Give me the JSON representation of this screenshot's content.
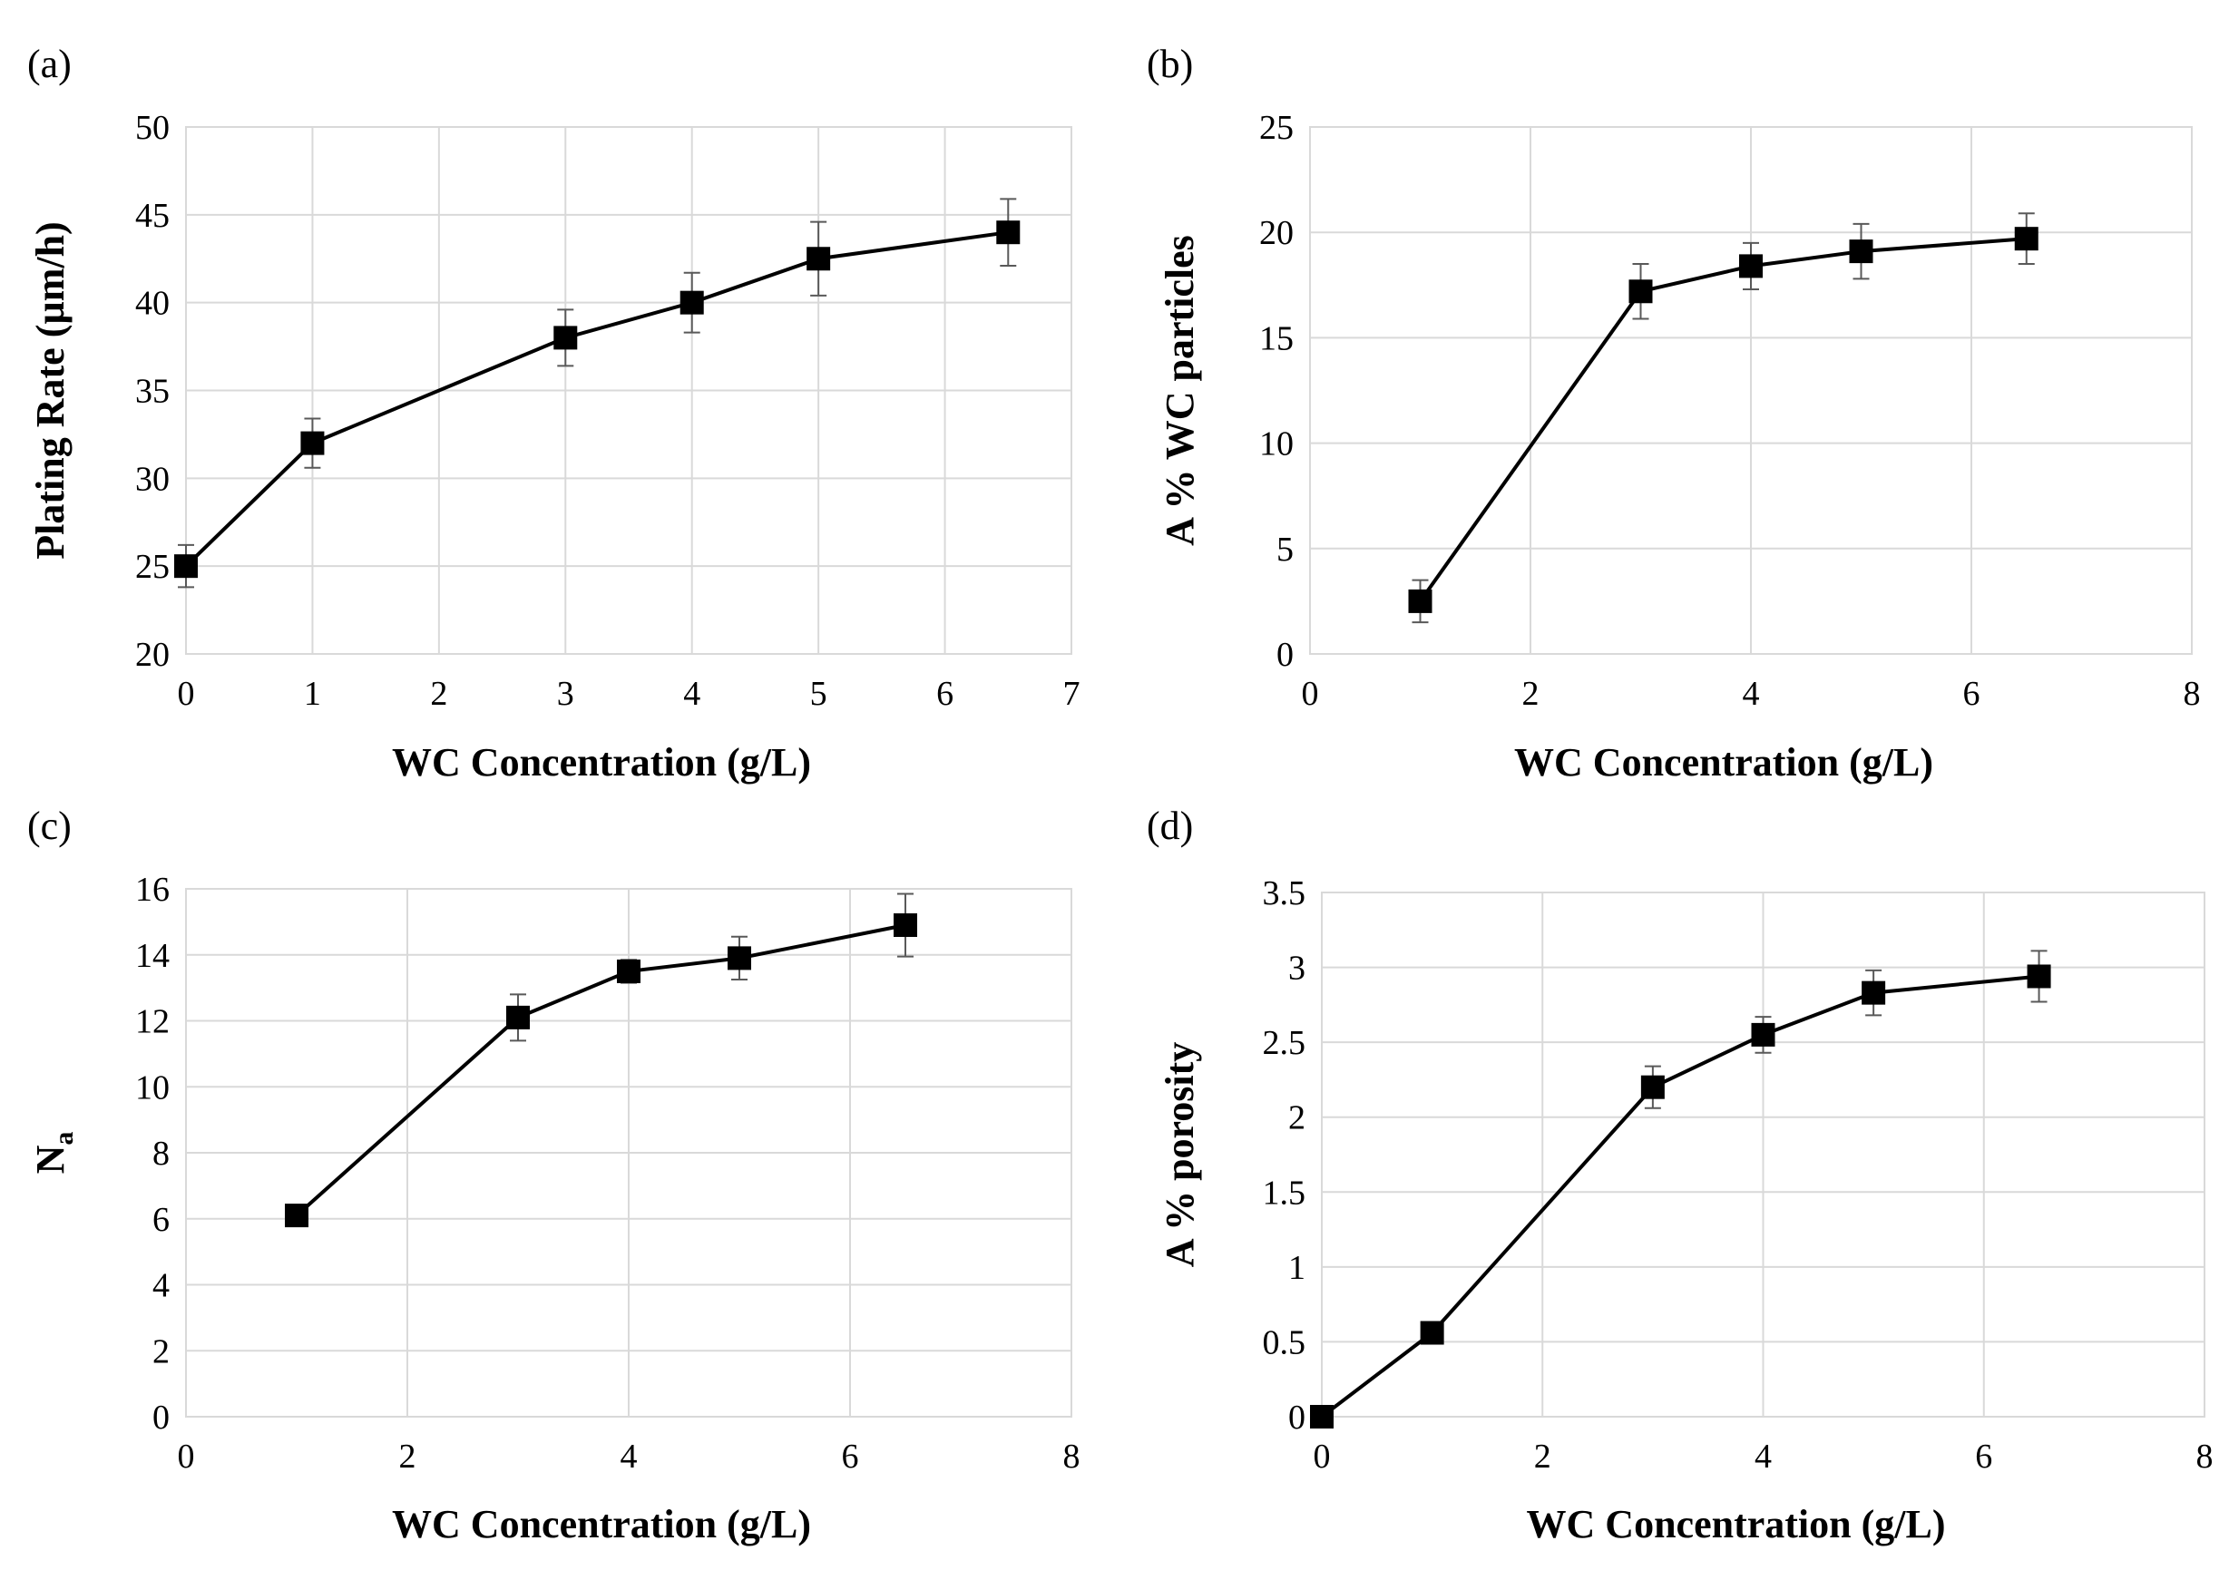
{
  "chart_data": [
    {
      "type": "line",
      "panel": "(a)",
      "xlabel": "WC Concentration (g/L)",
      "ylabel": "Plating Rate (µm/h)",
      "xlim": [
        0,
        7
      ],
      "ylim": [
        20,
        50
      ],
      "xticks": [
        0,
        1,
        2,
        3,
        4,
        5,
        6,
        7
      ],
      "yticks": [
        20,
        25,
        30,
        35,
        40,
        45,
        50
      ],
      "x": [
        0,
        1,
        3,
        4,
        5,
        6.5
      ],
      "y": [
        25,
        32,
        38,
        40,
        42.5,
        44
      ],
      "error": [
        1.2,
        1.4,
        1.6,
        1.7,
        2.1,
        1.9
      ],
      "grid": true
    },
    {
      "type": "line",
      "panel": "(b)",
      "xlabel": "WC Concentration (g/L)",
      "ylabel": "A % WC particles",
      "xlim": [
        0,
        8
      ],
      "ylim": [
        0,
        25
      ],
      "xticks": [
        0,
        2,
        4,
        6,
        8
      ],
      "yticks": [
        0,
        5,
        10,
        15,
        20,
        25
      ],
      "x": [
        1,
        3,
        4,
        5,
        6.5
      ],
      "y": [
        2.5,
        17.2,
        18.4,
        19.1,
        19.7
      ],
      "error": [
        1.0,
        1.3,
        1.1,
        1.3,
        1.2
      ],
      "grid": true
    },
    {
      "type": "line",
      "panel": "(c)",
      "xlabel": "WC Concentration (g/L)",
      "ylabel": "N",
      "ylabel_subscript": "a",
      "xlim": [
        0,
        8
      ],
      "ylim": [
        0,
        16
      ],
      "xticks": [
        0,
        2,
        4,
        6,
        8
      ],
      "yticks": [
        0,
        2,
        4,
        6,
        8,
        10,
        12,
        14,
        16
      ],
      "x": [
        1,
        3,
        4,
        5,
        6.5
      ],
      "y": [
        6.1,
        12.1,
        13.5,
        13.9,
        14.9
      ],
      "error": [
        0.3,
        0.7,
        0.35,
        0.65,
        0.95
      ],
      "grid": true
    },
    {
      "type": "line",
      "panel": "(d)",
      "xlabel": "WC Concentration (g/L)",
      "ylabel": "A % porosity",
      "xlim": [
        0,
        8
      ],
      "ylim": [
        0,
        3.5
      ],
      "xticks": [
        0,
        2,
        4,
        6,
        8
      ],
      "yticks": [
        0,
        0.5,
        1,
        1.5,
        2,
        2.5,
        3,
        3.5
      ],
      "x": [
        0,
        1,
        3,
        4,
        5,
        6.5
      ],
      "y": [
        0,
        0.56,
        2.2,
        2.55,
        2.83,
        2.94
      ],
      "error": [
        0.02,
        0.05,
        0.14,
        0.12,
        0.15,
        0.17
      ],
      "grid": true
    }
  ]
}
